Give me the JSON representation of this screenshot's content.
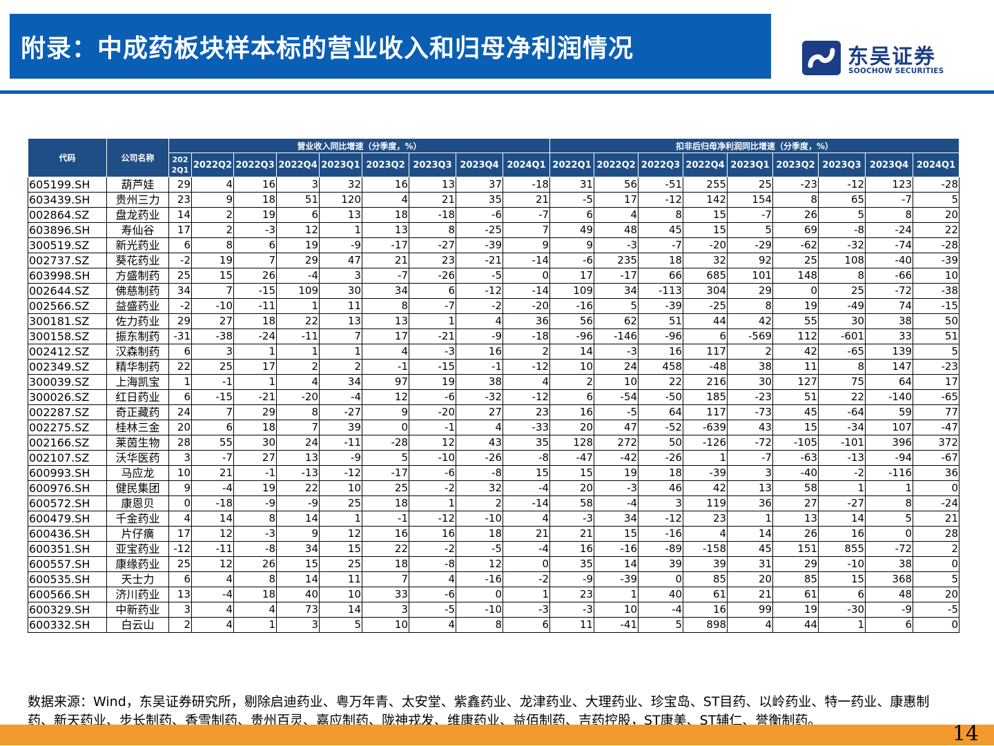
{
  "title": "附录：中成药板块样本标的营业收入和归母净利润情况",
  "logo": {
    "cn": "东吴证券",
    "en": "SOOCHOW SECURITIES"
  },
  "colors": {
    "brand_blue": "#0a5fb4",
    "header_navy": "#1f4e86",
    "accent_orange": "#f29a2e"
  },
  "table": {
    "code_header": "代码",
    "name_header": "公司名称",
    "group_revenue": "营业收入同比增速（分季度，%）",
    "group_profit": "扣非后归母净利润同比增速（分季度，%）",
    "revenue_quarters": [
      "2022Q1",
      "2022Q2",
      "2022Q3",
      "2022Q4",
      "2023Q1",
      "2023Q2",
      "2023Q3",
      "2023Q4",
      "2024Q1"
    ],
    "profit_quarters": [
      "2022Q1",
      "2022Q2",
      "2022Q3",
      "2022Q4",
      "2023Q1",
      "2023Q2",
      "2023Q3",
      "2023Q4",
      "2024Q1"
    ],
    "rows": [
      {
        "code": "605199.SH",
        "name": "葫芦娃",
        "revenue": [
          29,
          4,
          16,
          3,
          32,
          16,
          13,
          37,
          -18
        ],
        "profit": [
          31,
          56,
          -51,
          255,
          25,
          -23,
          -12,
          123,
          -28
        ]
      },
      {
        "code": "603439.SH",
        "name": "贵州三力",
        "revenue": [
          23,
          9,
          18,
          51,
          120,
          4,
          21,
          35,
          21
        ],
        "profit": [
          -5,
          17,
          -12,
          142,
          154,
          8,
          65,
          -7,
          5
        ]
      },
      {
        "code": "002864.SZ",
        "name": "盘龙药业",
        "revenue": [
          14,
          2,
          19,
          6,
          13,
          18,
          -18,
          -6,
          -7
        ],
        "profit": [
          6,
          4,
          8,
          15,
          -7,
          26,
          5,
          8,
          20
        ]
      },
      {
        "code": "603896.SH",
        "name": "寿仙谷",
        "revenue": [
          17,
          2,
          -3,
          12,
          1,
          13,
          8,
          -25,
          7
        ],
        "profit": [
          49,
          48,
          45,
          15,
          5,
          69,
          -8,
          -24,
          22
        ]
      },
      {
        "code": "300519.SZ",
        "name": "新光药业",
        "revenue": [
          6,
          8,
          6,
          19,
          -9,
          -17,
          -27,
          -39,
          9
        ],
        "profit": [
          9,
          -3,
          -7,
          -20,
          -29,
          -62,
          -32,
          -74,
          -28
        ]
      },
      {
        "code": "002737.SZ",
        "name": "葵花药业",
        "revenue": [
          -2,
          19,
          7,
          29,
          47,
          21,
          23,
          -21,
          -14
        ],
        "profit": [
          -6,
          235,
          18,
          32,
          92,
          25,
          108,
          -40,
          -39
        ]
      },
      {
        "code": "603998.SH",
        "name": "方盛制药",
        "revenue": [
          25,
          15,
          26,
          -4,
          3,
          -7,
          -26,
          -5,
          0
        ],
        "profit": [
          17,
          -17,
          66,
          685,
          101,
          148,
          8,
          -66,
          10
        ]
      },
      {
        "code": "002644.SZ",
        "name": "佛慈制药",
        "revenue": [
          34,
          7,
          -15,
          109,
          30,
          34,
          6,
          -12,
          -14
        ],
        "profit": [
          109,
          34,
          -113,
          304,
          29,
          0,
          25,
          -72,
          -38
        ]
      },
      {
        "code": "002566.SZ",
        "name": "益盛药业",
        "revenue": [
          -2,
          -10,
          -11,
          1,
          11,
          8,
          -7,
          -2,
          -20
        ],
        "profit": [
          -16,
          5,
          -39,
          -25,
          8,
          19,
          -49,
          74,
          -15
        ]
      },
      {
        "code": "300181.SZ",
        "name": "佐力药业",
        "revenue": [
          29,
          27,
          18,
          22,
          13,
          13,
          1,
          4,
          36
        ],
        "profit": [
          56,
          62,
          51,
          44,
          42,
          55,
          30,
          38,
          50
        ]
      },
      {
        "code": "300158.SZ",
        "name": "振东制药",
        "revenue": [
          -31,
          -38,
          -24,
          -11,
          7,
          17,
          -21,
          -9,
          -18
        ],
        "profit": [
          -96,
          -146,
          -96,
          6,
          -569,
          112,
          -601,
          33,
          51
        ]
      },
      {
        "code": "002412.SZ",
        "name": "汉森制药",
        "revenue": [
          6,
          3,
          1,
          1,
          1,
          4,
          -3,
          16,
          2
        ],
        "profit": [
          14,
          -3,
          16,
          117,
          2,
          42,
          -65,
          139,
          5
        ]
      },
      {
        "code": "002349.SZ",
        "name": "精华制药",
        "revenue": [
          22,
          25,
          17,
          2,
          2,
          -1,
          -15,
          -1,
          -12
        ],
        "profit": [
          10,
          24,
          458,
          -48,
          38,
          11,
          8,
          147,
          -23
        ]
      },
      {
        "code": "300039.SZ",
        "name": "上海凯宝",
        "revenue": [
          1,
          -1,
          1,
          4,
          34,
          97,
          19,
          38,
          4
        ],
        "profit": [
          2,
          10,
          22,
          216,
          30,
          127,
          75,
          64,
          17
        ]
      },
      {
        "code": "300026.SZ",
        "name": "红日药业",
        "revenue": [
          6,
          -15,
          -21,
          -20,
          -4,
          12,
          -6,
          -32,
          -12
        ],
        "profit": [
          6,
          -54,
          -50,
          185,
          -23,
          51,
          22,
          -140,
          -65
        ]
      },
      {
        "code": "002287.SZ",
        "name": "奇正藏药",
        "revenue": [
          24,
          7,
          29,
          8,
          -27,
          9,
          -20,
          27,
          23
        ],
        "profit": [
          16,
          -5,
          64,
          117,
          -73,
          45,
          -64,
          59,
          77
        ]
      },
      {
        "code": "002275.SZ",
        "name": "桂林三金",
        "revenue": [
          20,
          6,
          18,
          7,
          39,
          0,
          -1,
          4,
          -33
        ],
        "profit": [
          20,
          47,
          -52,
          -639,
          43,
          15,
          -34,
          107,
          -47
        ]
      },
      {
        "code": "002166.SZ",
        "name": "莱茵生物",
        "revenue": [
          28,
          55,
          30,
          24,
          -11,
          -28,
          12,
          43,
          35
        ],
        "profit": [
          128,
          272,
          50,
          -126,
          -72,
          -105,
          -101,
          396,
          372
        ]
      },
      {
        "code": "002107.SZ",
        "name": "沃华医药",
        "revenue": [
          3,
          -7,
          27,
          13,
          -9,
          5,
          -10,
          -26,
          -8
        ],
        "profit": [
          -47,
          -42,
          -26,
          1,
          -7,
          -63,
          -13,
          -94,
          -67
        ]
      },
      {
        "code": "600993.SH",
        "name": "马应龙",
        "revenue": [
          10,
          21,
          -1,
          -13,
          -12,
          -17,
          -6,
          -8,
          15
        ],
        "profit": [
          15,
          19,
          18,
          -39,
          3,
          -40,
          -2,
          -116,
          36
        ]
      },
      {
        "code": "600976.SH",
        "name": "健民集团",
        "revenue": [
          9,
          -4,
          19,
          22,
          10,
          25,
          -2,
          32,
          -4
        ],
        "profit": [
          20,
          -3,
          46,
          42,
          13,
          58,
          1,
          1,
          0
        ]
      },
      {
        "code": "600572.SH",
        "name": "康恩贝",
        "revenue": [
          0,
          -18,
          -9,
          -9,
          25,
          18,
          1,
          2,
          -14
        ],
        "profit": [
          58,
          -4,
          3,
          119,
          36,
          27,
          -27,
          8,
          -24
        ]
      },
      {
        "code": "600479.SH",
        "name": "千金药业",
        "revenue": [
          4,
          14,
          8,
          14,
          1,
          -1,
          -12,
          -10,
          4
        ],
        "profit": [
          -3,
          34,
          -12,
          23,
          1,
          13,
          14,
          5,
          21
        ]
      },
      {
        "code": "600436.SH",
        "name": "片仔癀",
        "revenue": [
          17,
          12,
          -3,
          9,
          12,
          16,
          16,
          18,
          21
        ],
        "profit": [
          21,
          15,
          -16,
          4,
          14,
          26,
          16,
          0,
          28
        ]
      },
      {
        "code": "600351.SH",
        "name": "亚宝药业",
        "revenue": [
          -12,
          -11,
          -8,
          34,
          15,
          22,
          -2,
          -5,
          -4
        ],
        "profit": [
          16,
          -16,
          -89,
          -158,
          45,
          151,
          855,
          -72,
          2
        ]
      },
      {
        "code": "600557.SH",
        "name": "康缘药业",
        "revenue": [
          25,
          12,
          26,
          15,
          25,
          18,
          -8,
          12,
          0
        ],
        "profit": [
          35,
          14,
          39,
          39,
          31,
          29,
          -10,
          38,
          0
        ]
      },
      {
        "code": "600535.SH",
        "name": "天士力",
        "revenue": [
          6,
          4,
          8,
          14,
          11,
          7,
          4,
          -16,
          -2
        ],
        "profit": [
          -9,
          -39,
          0,
          85,
          20,
          85,
          15,
          368,
          5
        ]
      },
      {
        "code": "600566.SH",
        "name": "济川药业",
        "revenue": [
          13,
          -4,
          18,
          40,
          10,
          33,
          -6,
          0,
          1
        ],
        "profit": [
          23,
          1,
          40,
          61,
          21,
          61,
          6,
          48,
          20
        ]
      },
      {
        "code": "600329.SH",
        "name": "中新药业",
        "revenue": [
          3,
          4,
          4,
          73,
          14,
          3,
          -5,
          -10,
          -3
        ],
        "profit": [
          -3,
          10,
          -4,
          16,
          99,
          19,
          -30,
          -9,
          -5
        ]
      },
      {
        "code": "600332.SH",
        "name": "白云山",
        "revenue": [
          2,
          4,
          1,
          3,
          5,
          10,
          4,
          8,
          6
        ],
        "profit": [
          11,
          -41,
          5,
          898,
          4,
          44,
          1,
          6,
          0
        ]
      }
    ]
  },
  "footnote": "数据来源：Wind，东吴证券研究所，剔除启迪药业、粤万年青、太安堂、紫鑫药业、龙津药业、大理药业、珍宝岛、ST目药、以岭药业、特一药业、康惠制药、新天药业、步长制药、香雪制药、贵州百灵、嘉应制药、陇神戎发、维康药业、益佰制药、吉药控股，ST康美、ST辅仁、誉衡制药。",
  "page_number": "14"
}
